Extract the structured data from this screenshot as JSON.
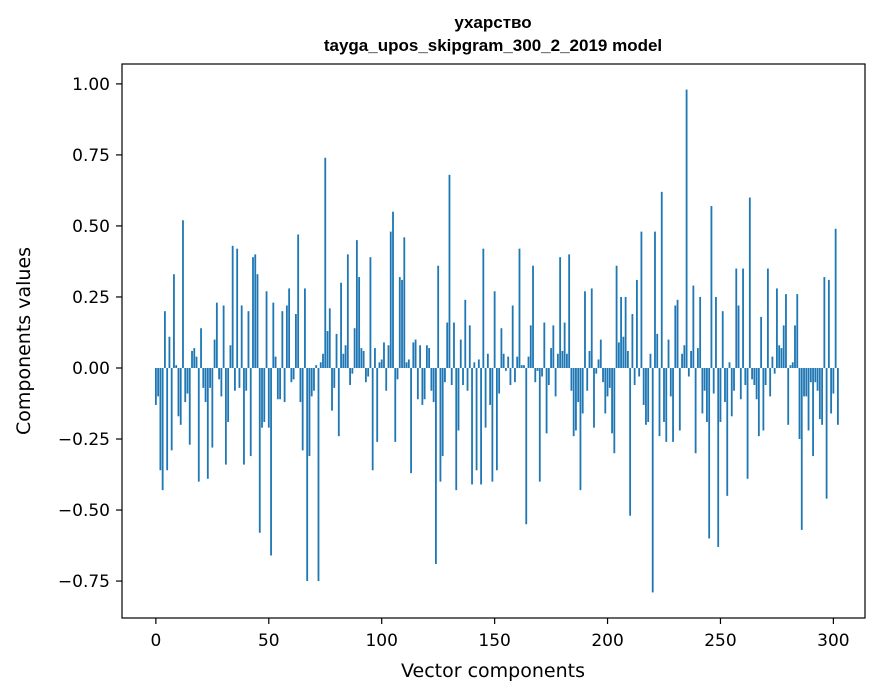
{
  "chart_data": {
    "type": "bar",
    "title": "ухарство",
    "subtitle": "tayga_upos_skipgram_300_2_2019 model",
    "xlabel": "Vector components",
    "ylabel": "Components values",
    "xlim": [
      -15,
      314
    ],
    "ylim": [
      -0.88,
      1.07
    ],
    "xticks": [
      0,
      50,
      100,
      150,
      200,
      250,
      300
    ],
    "xtick_labels": [
      "0",
      "50",
      "100",
      "150",
      "200",
      "250",
      "300"
    ],
    "yticks": [
      -0.75,
      -0.5,
      -0.25,
      0.0,
      0.25,
      0.5,
      0.75,
      1.0
    ],
    "ytick_labels": [
      "−0.75",
      "−0.50",
      "−0.25",
      "0.00",
      "0.25",
      "0.50",
      "0.75",
      "1.00"
    ],
    "grid": false,
    "bar_color": "#1f77b4",
    "values": [
      -0.13,
      -0.1,
      -0.36,
      -0.43,
      0.2,
      -0.36,
      0.11,
      -0.29,
      0.33,
      0.01,
      -0.17,
      -0.2,
      0.52,
      -0.12,
      -0.09,
      -0.27,
      0.06,
      0.07,
      0.04,
      -0.4,
      0.14,
      -0.07,
      -0.12,
      -0.39,
      -0.07,
      -0.28,
      0.1,
      0.23,
      -0.04,
      -0.1,
      0.22,
      -0.34,
      -0.19,
      0.08,
      0.43,
      -0.08,
      0.42,
      -0.07,
      0.22,
      -0.34,
      -0.08,
      0.2,
      -0.31,
      0.39,
      0.4,
      0.33,
      -0.58,
      -0.21,
      -0.19,
      0.27,
      -0.21,
      -0.66,
      0.23,
      0.04,
      -0.11,
      -0.11,
      0.2,
      -0.12,
      0.22,
      0.28,
      -0.05,
      -0.04,
      0.19,
      0.47,
      -0.12,
      -0.29,
      0.28,
      -0.75,
      -0.31,
      -0.1,
      -0.08,
      0.01,
      -0.75,
      0.02,
      0.05,
      0.74,
      0.13,
      0.21,
      -0.15,
      -0.07,
      0.12,
      -0.24,
      0.3,
      0.05,
      0.08,
      0.4,
      -0.06,
      -0.02,
      0.14,
      0.45,
      0.32,
      0.07,
      0.06,
      -0.05,
      -0.03,
      0.39,
      -0.36,
      0.07,
      -0.26,
      0.02,
      0.03,
      0.09,
      -0.08,
      0.08,
      0.48,
      0.55,
      -0.26,
      -0.04,
      0.32,
      0.31,
      0.46,
      0.02,
      0.03,
      -0.37,
      0.09,
      0.1,
      -0.11,
      0.08,
      -0.13,
      -0.11,
      0.08,
      0.07,
      -0.08,
      -0.12,
      -0.69,
      0.36,
      -0.4,
      -0.31,
      -0.05,
      0.16,
      0.68,
      -0.06,
      0.16,
      -0.43,
      -0.22,
      0.1,
      -0.06,
      0.24,
      -0.08,
      0.15,
      -0.41,
      0.02,
      -0.36,
      0.03,
      -0.41,
      0.42,
      -0.21,
      0.05,
      -0.13,
      -0.4,
      0.27,
      -0.36,
      -0.09,
      0.14,
      0.05,
      -0.01,
      0.04,
      -0.06,
      0.22,
      -0.05,
      0.04,
      0.42,
      0.01,
      0.01,
      -0.55,
      0.04,
      0.15,
      0.36,
      -0.05,
      -0.01,
      -0.4,
      -0.03,
      0.16,
      -0.23,
      -0.06,
      0.07,
      0.15,
      -0.1,
      0.05,
      0.39,
      0.06,
      0.16,
      0.05,
      0.4,
      -0.08,
      -0.24,
      -0.22,
      -0.12,
      -0.43,
      -0.16,
      0.27,
      -0.08,
      0.06,
      0.28,
      -0.21,
      -0.02,
      0.03,
      0.1,
      -0.05,
      -0.16,
      -0.1,
      -0.07,
      -0.23,
      -0.3,
      0.36,
      0.09,
      0.25,
      0.11,
      0.25,
      0.06,
      -0.52,
      0.19,
      -0.06,
      0.31,
      -0.03,
      0.48,
      -0.13,
      -0.2,
      -0.19,
      0.05,
      -0.79,
      0.48,
      0.12,
      -0.24,
      0.62,
      -0.19,
      -0.26,
      0.1,
      -0.1,
      -0.26,
      0.22,
      0.24,
      -0.22,
      0.05,
      0.08,
      0.98,
      -0.03,
      0.06,
      0.29,
      -0.3,
      0.07,
      0.25,
      -0.16,
      -0.08,
      -0.19,
      -0.6,
      0.57,
      -0.09,
      0.25,
      -0.63,
      -0.19,
      0.2,
      -0.12,
      -0.45,
      0.02,
      -0.17,
      -0.08,
      0.35,
      0.22,
      -0.11,
      0.35,
      -0.06,
      -0.39,
      0.6,
      -0.04,
      -0.06,
      -0.11,
      -0.24,
      0.18,
      -0.22,
      -0.06,
      0.35,
      -0.1,
      0.04,
      -0.02,
      0.28,
      0.08,
      0.07,
      0.15,
      0.26,
      -0.2,
      0.01,
      0.02,
      0.15,
      0.26,
      -0.25,
      -0.57,
      -0.1,
      -0.1,
      -0.22,
      -0.05,
      -0.31,
      -0.05,
      -0.08,
      -0.18,
      -0.2,
      0.32,
      -0.46,
      0.31,
      -0.16,
      -0.09,
      0.49,
      -0.2
    ]
  }
}
